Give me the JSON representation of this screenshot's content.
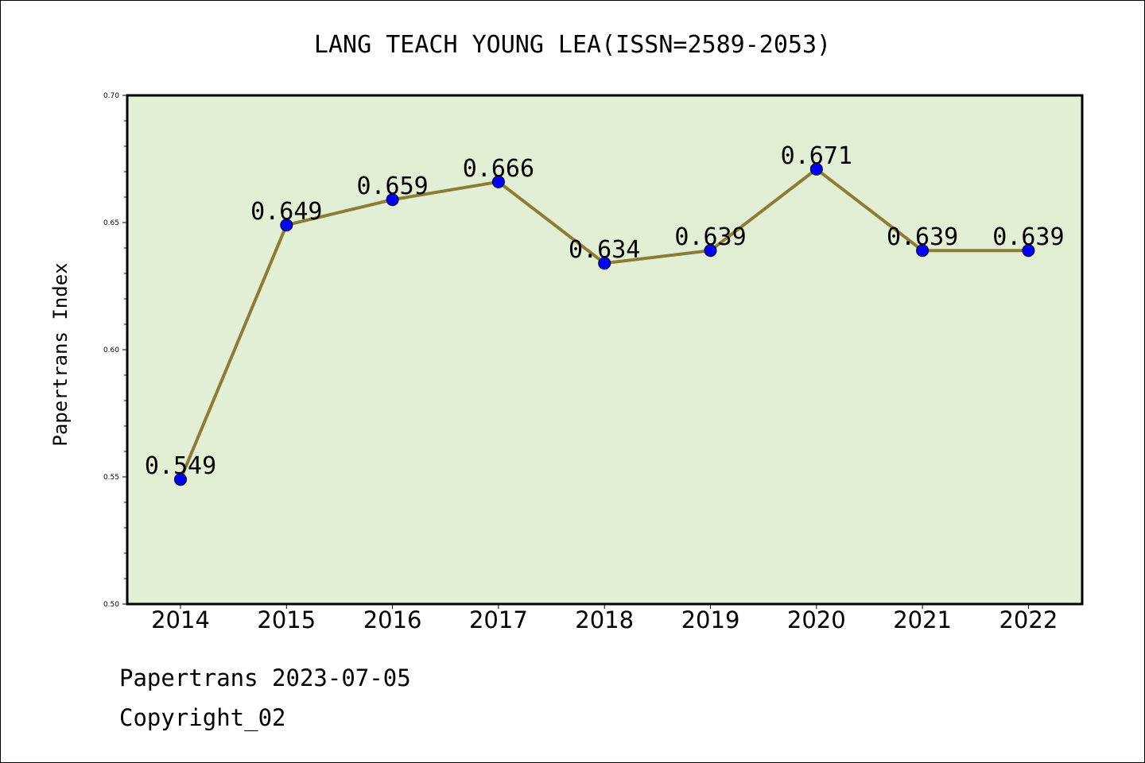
{
  "chart_data": {
    "type": "line",
    "title": "LANG TEACH YOUNG LEA(ISSN=2589-2053)",
    "xlabel": "",
    "ylabel": "Papertrans Index",
    "categories": [
      "2014",
      "2015",
      "2016",
      "2017",
      "2018",
      "2019",
      "2020",
      "2021",
      "2022"
    ],
    "values": [
      0.549,
      0.649,
      0.659,
      0.666,
      0.634,
      0.639,
      0.671,
      0.639,
      0.639
    ],
    "data_labels": [
      "0.549",
      "0.649",
      "0.659",
      "0.666",
      "0.634",
      "0.639",
      "0.671",
      "0.639",
      "0.639"
    ],
    "ylim": [
      0.5,
      0.7
    ],
    "yticks": [
      "0.50",
      "0.55",
      "0.60",
      "0.65",
      "0.70"
    ],
    "grid": false,
    "colors": {
      "plot_background": "#e2efd5",
      "line": "#8b7d35",
      "marker": "#0000ff"
    }
  },
  "footer": {
    "line1": "Papertrans 2023-07-05",
    "line2": "Copyright_02"
  }
}
